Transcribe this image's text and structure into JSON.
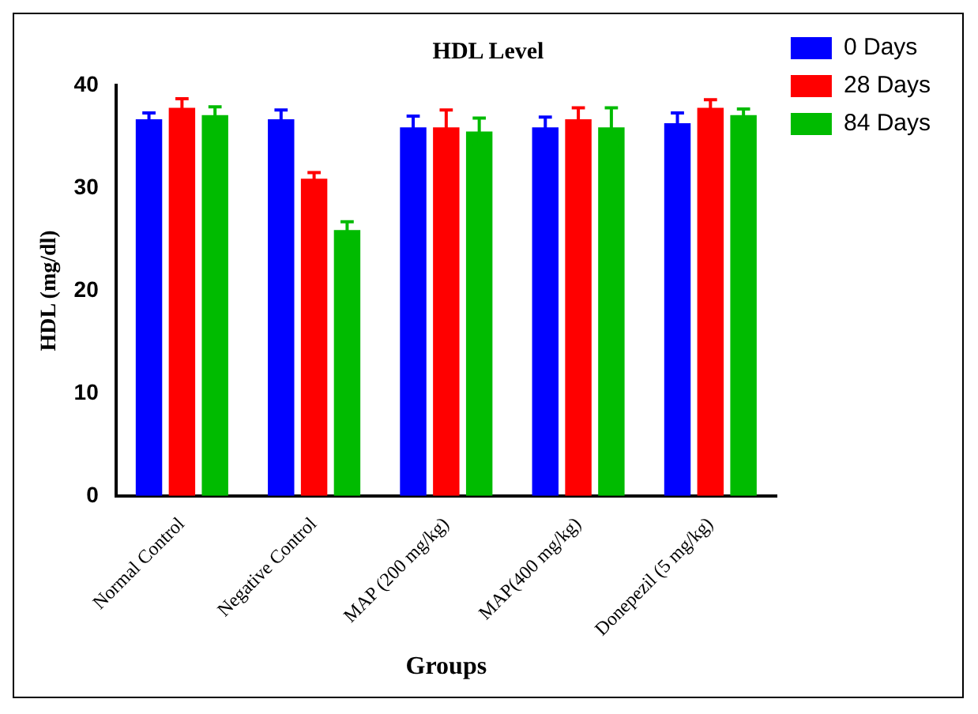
{
  "chart_data": {
    "type": "bar",
    "title": "HDL Level",
    "xlabel": "Groups",
    "ylabel": "HDL (mg/dl)",
    "categories": [
      "Normal Control",
      "Negative Control",
      "MAP (200 mg/kg)",
      "MAP(400 mg/kg)",
      "Donepezil (5 mg/kg)"
    ],
    "series": [
      {
        "name": "0 Days",
        "color": "#0000ff",
        "values": [
          36.7,
          36.7,
          35.9,
          35.9,
          36.3
        ],
        "errors": [
          0.6,
          0.9,
          1.1,
          1.0,
          1.0
        ]
      },
      {
        "name": "28 Days",
        "color": "#ff0000",
        "values": [
          37.8,
          30.9,
          35.9,
          36.7,
          37.8
        ],
        "errors": [
          0.9,
          0.6,
          1.7,
          1.1,
          0.8
        ]
      },
      {
        "name": "84 Days",
        "color": "#00bb00",
        "values": [
          37.1,
          25.9,
          35.5,
          35.9,
          37.1
        ],
        "errors": [
          0.8,
          0.8,
          1.3,
          1.9,
          0.6
        ]
      }
    ],
    "ylim": [
      0,
      40
    ],
    "yticks": [
      0,
      10,
      20,
      30,
      40
    ],
    "grid": false,
    "legend": "top right"
  }
}
